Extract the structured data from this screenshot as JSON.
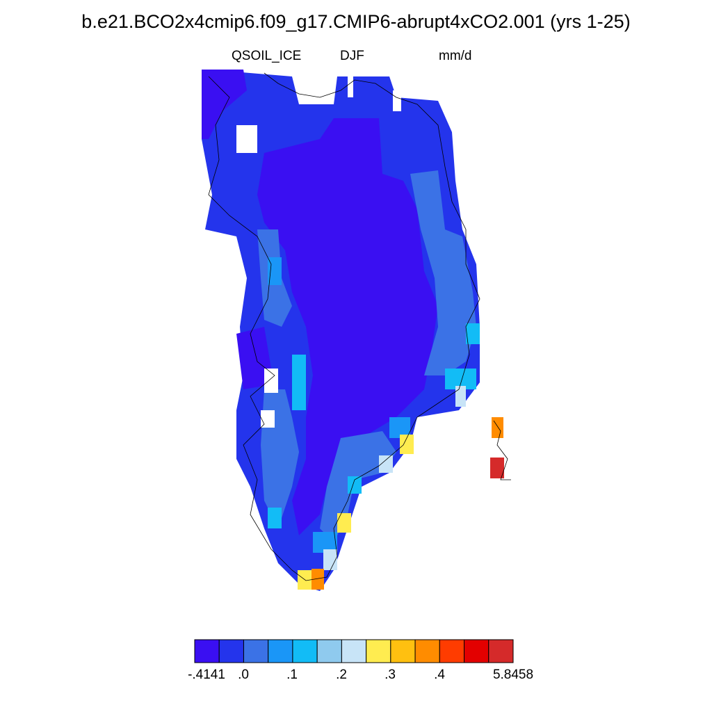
{
  "title": "b.e21.BCO2x4cmip6.f09_g17.CMIP6-abrupt4xCO2.001 (yrs 1-25)",
  "subtitle": {
    "variable": "QSOIL_ICE",
    "season": "DJF",
    "units": "mm/d"
  },
  "colorbar": {
    "colors": [
      "#3a0ff2",
      "#2434ec",
      "#3b72e6",
      "#1a96f7",
      "#12bcf6",
      "#8fcaee",
      "#c8e4f7",
      "#ffec50",
      "#ffc010",
      "#ff8c00",
      "#ff3c00",
      "#e30000",
      "#d52a2a"
    ],
    "labels": [
      "-.4141",
      ".0",
      ".1",
      ".2",
      ".3",
      ".4",
      "5.8458"
    ]
  },
  "map": {
    "region": "Greenland",
    "coastline": "black"
  }
}
